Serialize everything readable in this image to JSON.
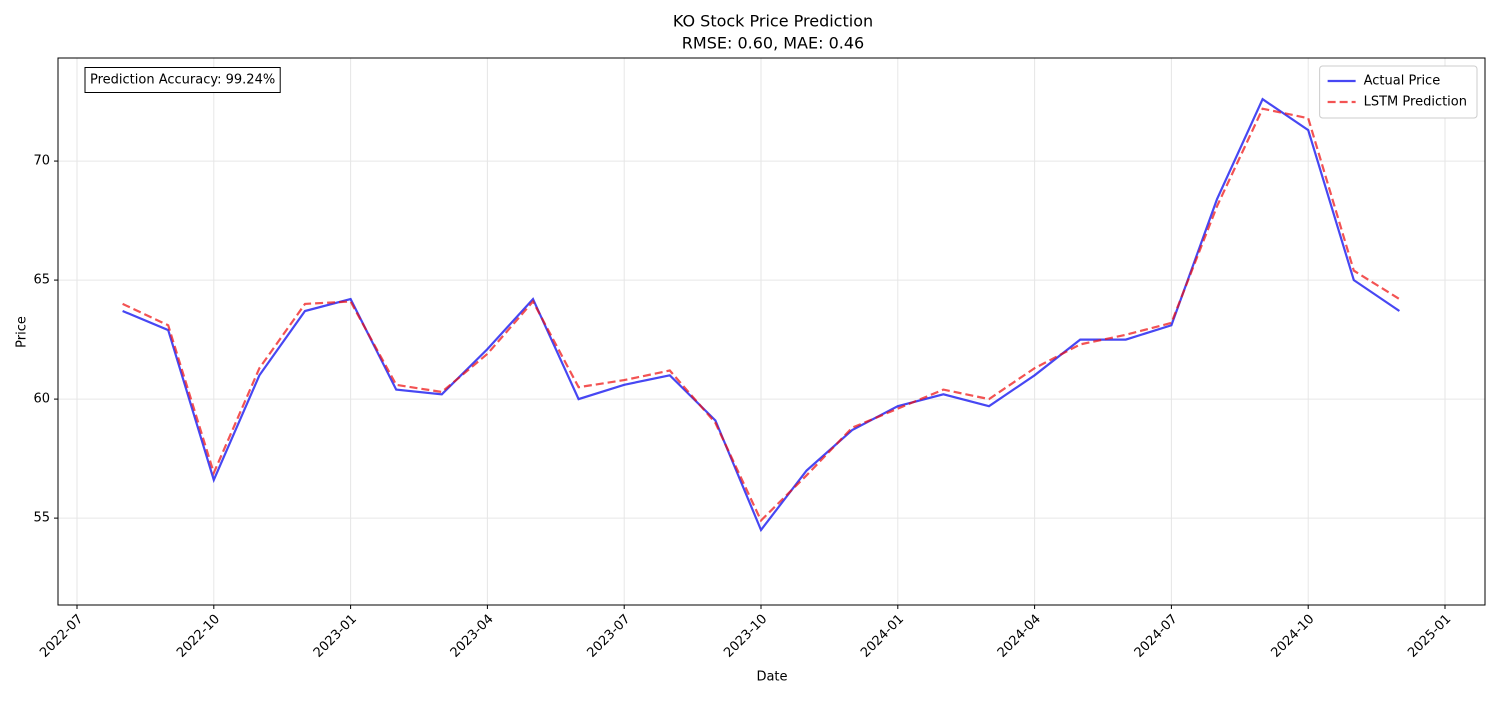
{
  "chart_data": {
    "type": "line",
    "title": "KO Stock Price Prediction",
    "subtitle": "RMSE: 0.60, MAE: 0.46",
    "x_label": "Date",
    "y_label": "Price",
    "annotation": "Prediction Accuracy: 99.24%",
    "x": [
      "2022-08",
      "2022-09",
      "2022-10",
      "2022-11",
      "2022-12",
      "2023-01",
      "2023-02",
      "2023-03",
      "2023-04",
      "2023-05",
      "2023-06",
      "2023-07",
      "2023-08",
      "2023-09",
      "2023-10",
      "2023-11",
      "2023-12",
      "2024-01",
      "2024-02",
      "2024-03",
      "2024-04",
      "2024-05",
      "2024-06",
      "2024-07",
      "2024-08",
      "2024-09",
      "2024-10",
      "2024-11",
      "2024-12"
    ],
    "series": [
      {
        "name": "Actual Price",
        "color": "#0000ee",
        "style": "solid",
        "values": [
          63.7,
          62.9,
          56.6,
          61.0,
          63.7,
          64.2,
          60.4,
          60.2,
          62.1,
          64.2,
          60.0,
          60.6,
          61.0,
          59.1,
          54.5,
          57.0,
          58.7,
          59.7,
          60.2,
          59.7,
          61.0,
          62.5,
          62.5,
          63.1,
          68.4,
          72.6,
          71.3,
          65.0,
          63.7
        ]
      },
      {
        "name": "LSTM Prediction",
        "color": "#ee1111",
        "style": "dashed",
        "values": [
          64.0,
          63.1,
          56.9,
          61.3,
          64.0,
          64.1,
          60.6,
          60.3,
          61.9,
          64.1,
          60.5,
          60.8,
          61.2,
          59.0,
          54.9,
          56.8,
          58.8,
          59.6,
          60.4,
          60.0,
          61.3,
          62.3,
          62.7,
          63.2,
          68.1,
          72.2,
          71.8,
          65.4,
          64.2
        ]
      }
    ],
    "xlim": [
      "2022-07",
      "2025-01"
    ],
    "xticks": [
      "2022-07",
      "2022-10",
      "2023-01",
      "2023-04",
      "2023-07",
      "2023-10",
      "2024-01",
      "2024-04",
      "2024-07",
      "2024-10",
      "2025-01"
    ],
    "ylim": [
      51.35,
      74.33
    ],
    "yticks": [
      55,
      60,
      65,
      70
    ],
    "grid": true,
    "legend": "upper right"
  }
}
